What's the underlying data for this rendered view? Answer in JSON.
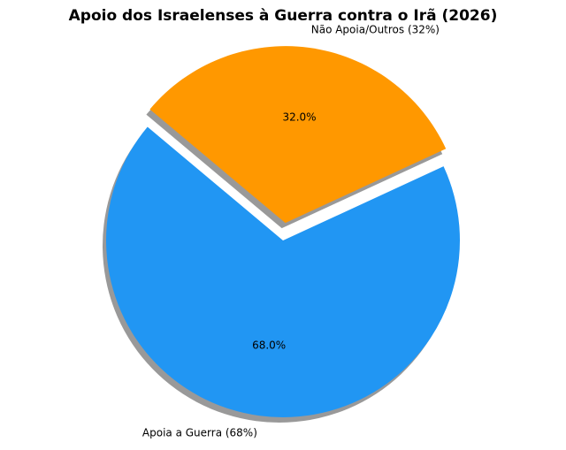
{
  "chart_data": {
    "type": "pie",
    "title": "Apoio dos Israelenses à Guerra contra o Irã (2026)",
    "categories": [
      "Apoia a Guerra (68%)",
      "Não Apoia/Outros (32%)"
    ],
    "values": [
      68,
      32
    ],
    "value_labels": [
      "68.0%",
      "32.0%"
    ],
    "colors": [
      "#2196f3",
      "#ff9800"
    ],
    "explode": [
      0,
      0.1
    ],
    "startangle": 140,
    "shadow": true
  }
}
